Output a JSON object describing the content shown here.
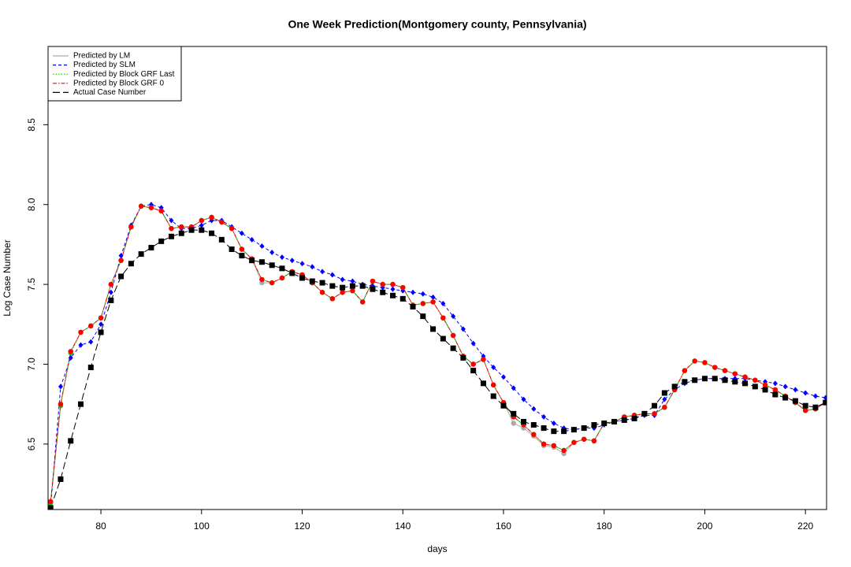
{
  "chart_data": {
    "type": "line",
    "title": "One Week Prediction(Montgomery county, Pennsylvania)",
    "x_label": "days",
    "y_label": "Log Case Number",
    "x": [
      70,
      72,
      74,
      76,
      78,
      80,
      82,
      84,
      86,
      88,
      90,
      92,
      94,
      96,
      98,
      100,
      102,
      104,
      106,
      108,
      110,
      112,
      114,
      116,
      118,
      120,
      122,
      124,
      126,
      128,
      130,
      132,
      134,
      136,
      138,
      140,
      142,
      144,
      146,
      148,
      150,
      152,
      154,
      156,
      158,
      160,
      162,
      164,
      166,
      168,
      170,
      172,
      174,
      176,
      178,
      180,
      182,
      184,
      186,
      188,
      190,
      192,
      194,
      196,
      198,
      200,
      202,
      204,
      206,
      208,
      210,
      212,
      214,
      216,
      218,
      220,
      222,
      224
    ],
    "xlim": [
      69.5,
      224.2
    ],
    "xticks": [
      80,
      100,
      120,
      140,
      160,
      180,
      200,
      220
    ],
    "ylim": [
      6.09,
      8.99
    ],
    "yticks": [
      6.5,
      {
        "value": 7,
        "label": "7.0"
      },
      7.5,
      {
        "value": 8,
        "label": "8.0"
      },
      8.5
    ],
    "legend": "top-left",
    "series": [
      {
        "name": "Predicted by LM",
        "color": "#aaaaaa",
        "dash": "solid",
        "marker": "circle",
        "values": [
          6.14,
          6.75,
          7.08,
          7.2,
          7.24,
          7.29,
          7.5,
          7.65,
          7.86,
          7.99,
          7.98,
          7.96,
          7.85,
          7.86,
          7.86,
          7.9,
          7.92,
          7.89,
          7.85,
          7.72,
          7.66,
          7.51,
          7.51,
          7.54,
          7.58,
          7.56,
          7.51,
          7.45,
          7.41,
          7.45,
          7.46,
          7.39,
          7.52,
          7.5,
          7.5,
          7.48,
          7.37,
          7.38,
          7.39,
          7.29,
          7.18,
          7.05,
          7.0,
          7.03,
          6.87,
          6.76,
          6.63,
          6.6,
          6.55,
          6.49,
          6.48,
          6.44,
          6.51,
          6.53,
          6.52,
          6.63,
          6.64,
          6.67,
          6.68,
          6.69,
          6.69,
          6.73,
          6.84,
          6.96,
          7.02,
          7.01,
          6.98,
          6.96,
          6.94,
          6.92,
          6.9,
          6.87,
          6.84,
          6.8,
          6.76,
          6.71,
          6.72,
          6.76
        ]
      },
      {
        "name": "Predicted by SLM",
        "color": "#0000ff",
        "dash": "dashed",
        "marker": "diamond",
        "values": [
          6.1,
          6.86,
          7.04,
          7.12,
          7.14,
          7.25,
          7.45,
          7.68,
          7.87,
          7.99,
          8.0,
          7.98,
          7.9,
          7.85,
          7.85,
          7.87,
          7.9,
          7.9,
          7.86,
          7.82,
          7.78,
          7.74,
          7.7,
          7.67,
          7.65,
          7.63,
          7.61,
          7.58,
          7.56,
          7.53,
          7.52,
          7.5,
          7.49,
          7.48,
          7.47,
          7.46,
          7.45,
          7.44,
          7.42,
          7.38,
          7.3,
          7.22,
          7.13,
          7.05,
          6.98,
          6.92,
          6.85,
          6.78,
          6.72,
          6.67,
          6.63,
          6.6,
          6.59,
          6.6,
          6.6,
          6.62,
          6.64,
          6.65,
          6.66,
          6.68,
          6.68,
          6.78,
          6.84,
          6.88,
          6.9,
          6.91,
          6.91,
          6.91,
          6.91,
          6.91,
          6.9,
          6.89,
          6.88,
          6.86,
          6.84,
          6.82,
          6.8,
          6.79
        ]
      },
      {
        "name": "Predicted by Block GRF Last",
        "color": "#00cc00",
        "dash": "dotted",
        "marker": "circle",
        "values": [
          6.13,
          6.74,
          7.07,
          7.2,
          7.24,
          7.29,
          7.5,
          7.65,
          7.86,
          7.99,
          7.98,
          7.96,
          7.85,
          7.86,
          7.86,
          7.9,
          7.92,
          7.89,
          7.85,
          7.72,
          7.66,
          7.53,
          7.51,
          7.54,
          7.58,
          7.56,
          7.51,
          7.45,
          7.41,
          7.45,
          7.46,
          7.39,
          7.52,
          7.5,
          7.5,
          7.48,
          7.37,
          7.38,
          7.39,
          7.29,
          7.18,
          7.05,
          7.0,
          7.03,
          6.87,
          6.76,
          6.67,
          6.62,
          6.56,
          6.5,
          6.49,
          6.46,
          6.51,
          6.53,
          6.52,
          6.63,
          6.64,
          6.67,
          6.68,
          6.69,
          6.69,
          6.73,
          6.84,
          6.96,
          7.02,
          7.01,
          6.98,
          6.96,
          6.94,
          6.92,
          6.9,
          6.87,
          6.84,
          6.8,
          6.76,
          6.71,
          6.72,
          6.76
        ]
      },
      {
        "name": "Predicted by Block GRF 0",
        "color": "#ff0000",
        "dash": "dashdot",
        "marker": "circle",
        "values": [
          6.14,
          6.75,
          7.08,
          7.2,
          7.24,
          7.29,
          7.5,
          7.65,
          7.86,
          7.99,
          7.98,
          7.96,
          7.85,
          7.86,
          7.86,
          7.9,
          7.92,
          7.89,
          7.85,
          7.72,
          7.66,
          7.53,
          7.51,
          7.54,
          7.58,
          7.56,
          7.51,
          7.45,
          7.41,
          7.45,
          7.46,
          7.39,
          7.52,
          7.5,
          7.5,
          7.48,
          7.37,
          7.38,
          7.39,
          7.29,
          7.18,
          7.05,
          7.0,
          7.03,
          6.87,
          6.76,
          6.67,
          6.62,
          6.56,
          6.5,
          6.49,
          6.46,
          6.51,
          6.53,
          6.52,
          6.63,
          6.64,
          6.67,
          6.68,
          6.69,
          6.69,
          6.73,
          6.84,
          6.96,
          7.02,
          7.01,
          6.98,
          6.96,
          6.94,
          6.92,
          6.9,
          6.87,
          6.84,
          6.8,
          6.76,
          6.71,
          6.72,
          6.76
        ]
      },
      {
        "name": "Actual Case Number",
        "color": "#000000",
        "dash": "longdash",
        "marker": "square",
        "values": [
          6.1,
          6.28,
          6.52,
          6.75,
          6.98,
          7.2,
          7.4,
          7.55,
          7.63,
          7.69,
          7.73,
          7.77,
          7.8,
          7.82,
          7.84,
          7.84,
          7.82,
          7.78,
          7.72,
          7.68,
          7.65,
          7.64,
          7.62,
          7.6,
          7.57,
          7.54,
          7.52,
          7.51,
          7.49,
          7.48,
          7.49,
          7.49,
          7.47,
          7.45,
          7.43,
          7.41,
          7.36,
          7.3,
          7.22,
          7.16,
          7.1,
          7.04,
          6.96,
          6.88,
          6.8,
          6.74,
          6.69,
          6.64,
          6.62,
          6.6,
          6.58,
          6.58,
          6.59,
          6.6,
          6.62,
          6.63,
          6.64,
          6.65,
          6.66,
          6.69,
          6.74,
          6.82,
          6.86,
          6.89,
          6.9,
          6.91,
          6.91,
          6.9,
          6.89,
          6.88,
          6.86,
          6.84,
          6.81,
          6.79,
          6.77,
          6.74,
          6.73,
          6.76
        ]
      }
    ]
  }
}
